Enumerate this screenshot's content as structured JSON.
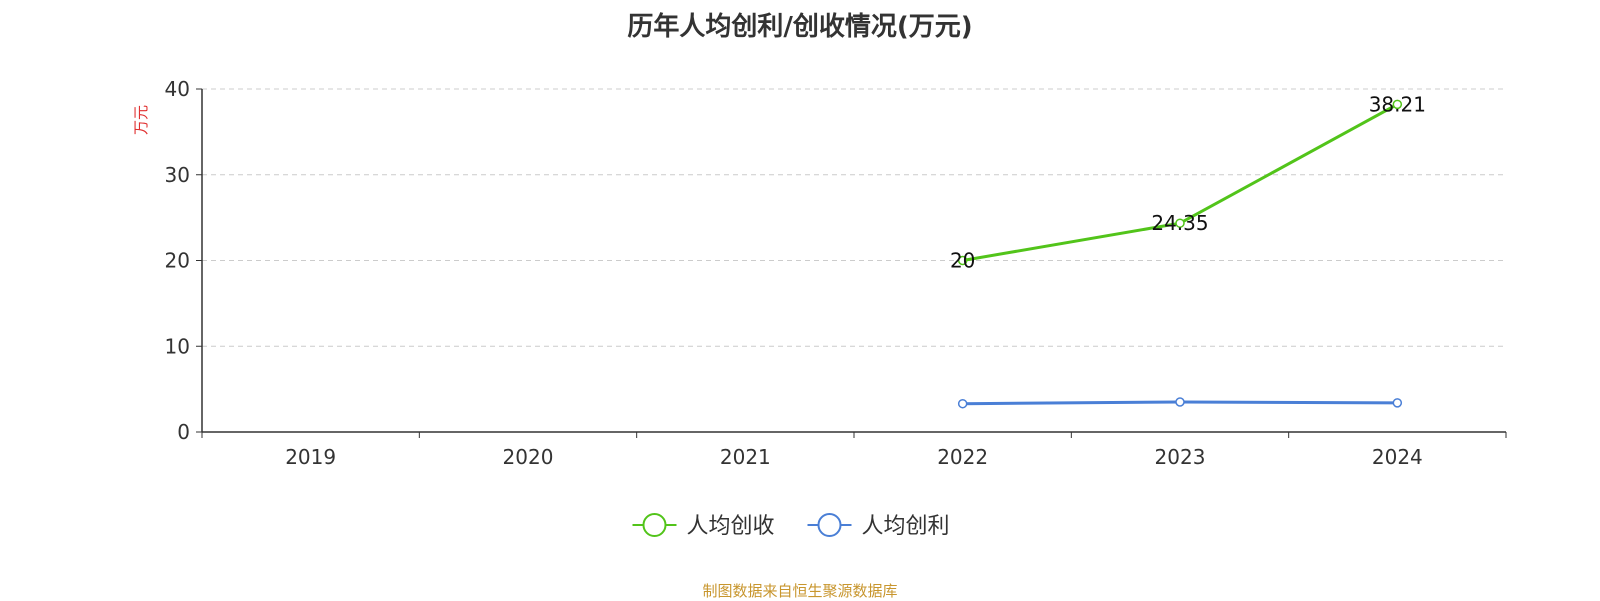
{
  "chart_data": {
    "type": "line",
    "title": "历年人均创利/创收情况(万元)",
    "ylabel": "万元",
    "xlabel": "",
    "ylim": [
      0,
      40
    ],
    "yticks": [
      0,
      10,
      20,
      30,
      40
    ],
    "categories": [
      "2019",
      "2020",
      "2021",
      "2022",
      "2023",
      "2024"
    ],
    "series": [
      {
        "name": "人均创收",
        "color": "#52c41a",
        "values": [
          null,
          null,
          null,
          20,
          24.35,
          38.21
        ],
        "labels": [
          null,
          null,
          null,
          "20",
          "24.35",
          "38.21"
        ]
      },
      {
        "name": "人均创利",
        "color": "#4a7fd6",
        "values": [
          null,
          null,
          null,
          3.3,
          3.5,
          3.4
        ],
        "labels": [
          null,
          null,
          null,
          null,
          null,
          null
        ]
      }
    ],
    "grid": "horizontal dashed",
    "legend_position": "bottom-center"
  },
  "source": "制图数据来自恒生聚源数据库",
  "colors": {
    "axis": "#333333",
    "grid": "#cccccc",
    "ylabel": "#e03030",
    "source": "#c8962e"
  }
}
